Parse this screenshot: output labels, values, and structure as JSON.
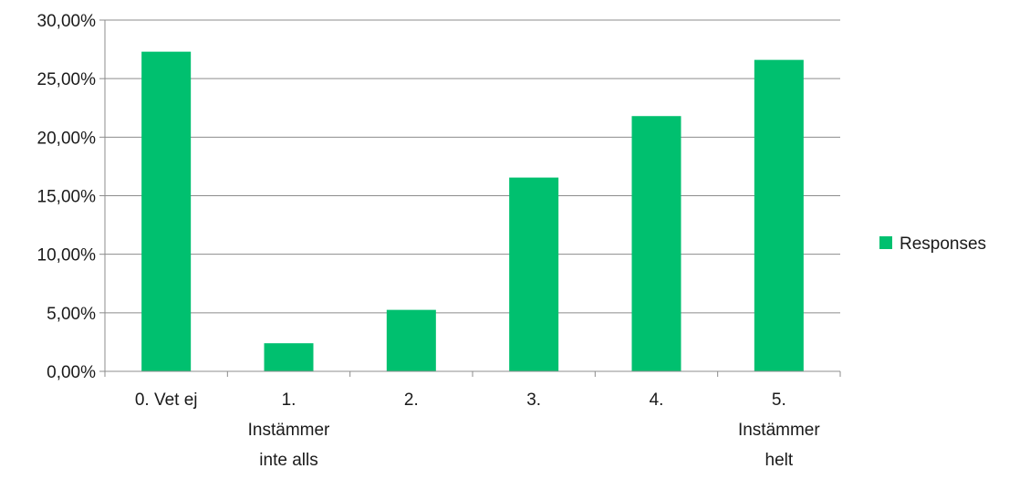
{
  "chart_data": {
    "type": "bar",
    "categories": [
      [
        "0. Vet ej"
      ],
      [
        "1.",
        "Instämmer",
        "inte alls"
      ],
      [
        "2."
      ],
      [
        "3."
      ],
      [
        "4."
      ],
      [
        "5.",
        "Instämmer",
        "helt"
      ]
    ],
    "series": [
      {
        "name": "Responses",
        "color": "#00C06F",
        "values": [
          27.3,
          2.4,
          5.25,
          16.55,
          21.8,
          26.6
        ]
      }
    ],
    "ylim": [
      0,
      30
    ],
    "yticks": [
      0,
      5,
      10,
      15,
      20,
      25,
      30
    ],
    "ytick_labels": [
      "0,00%",
      "5,00%",
      "10,00%",
      "15,00%",
      "20,00%",
      "25,00%",
      "30,00%"
    ],
    "grid": true,
    "legend_position": "right",
    "title": "",
    "xlabel": "",
    "ylabel": ""
  }
}
